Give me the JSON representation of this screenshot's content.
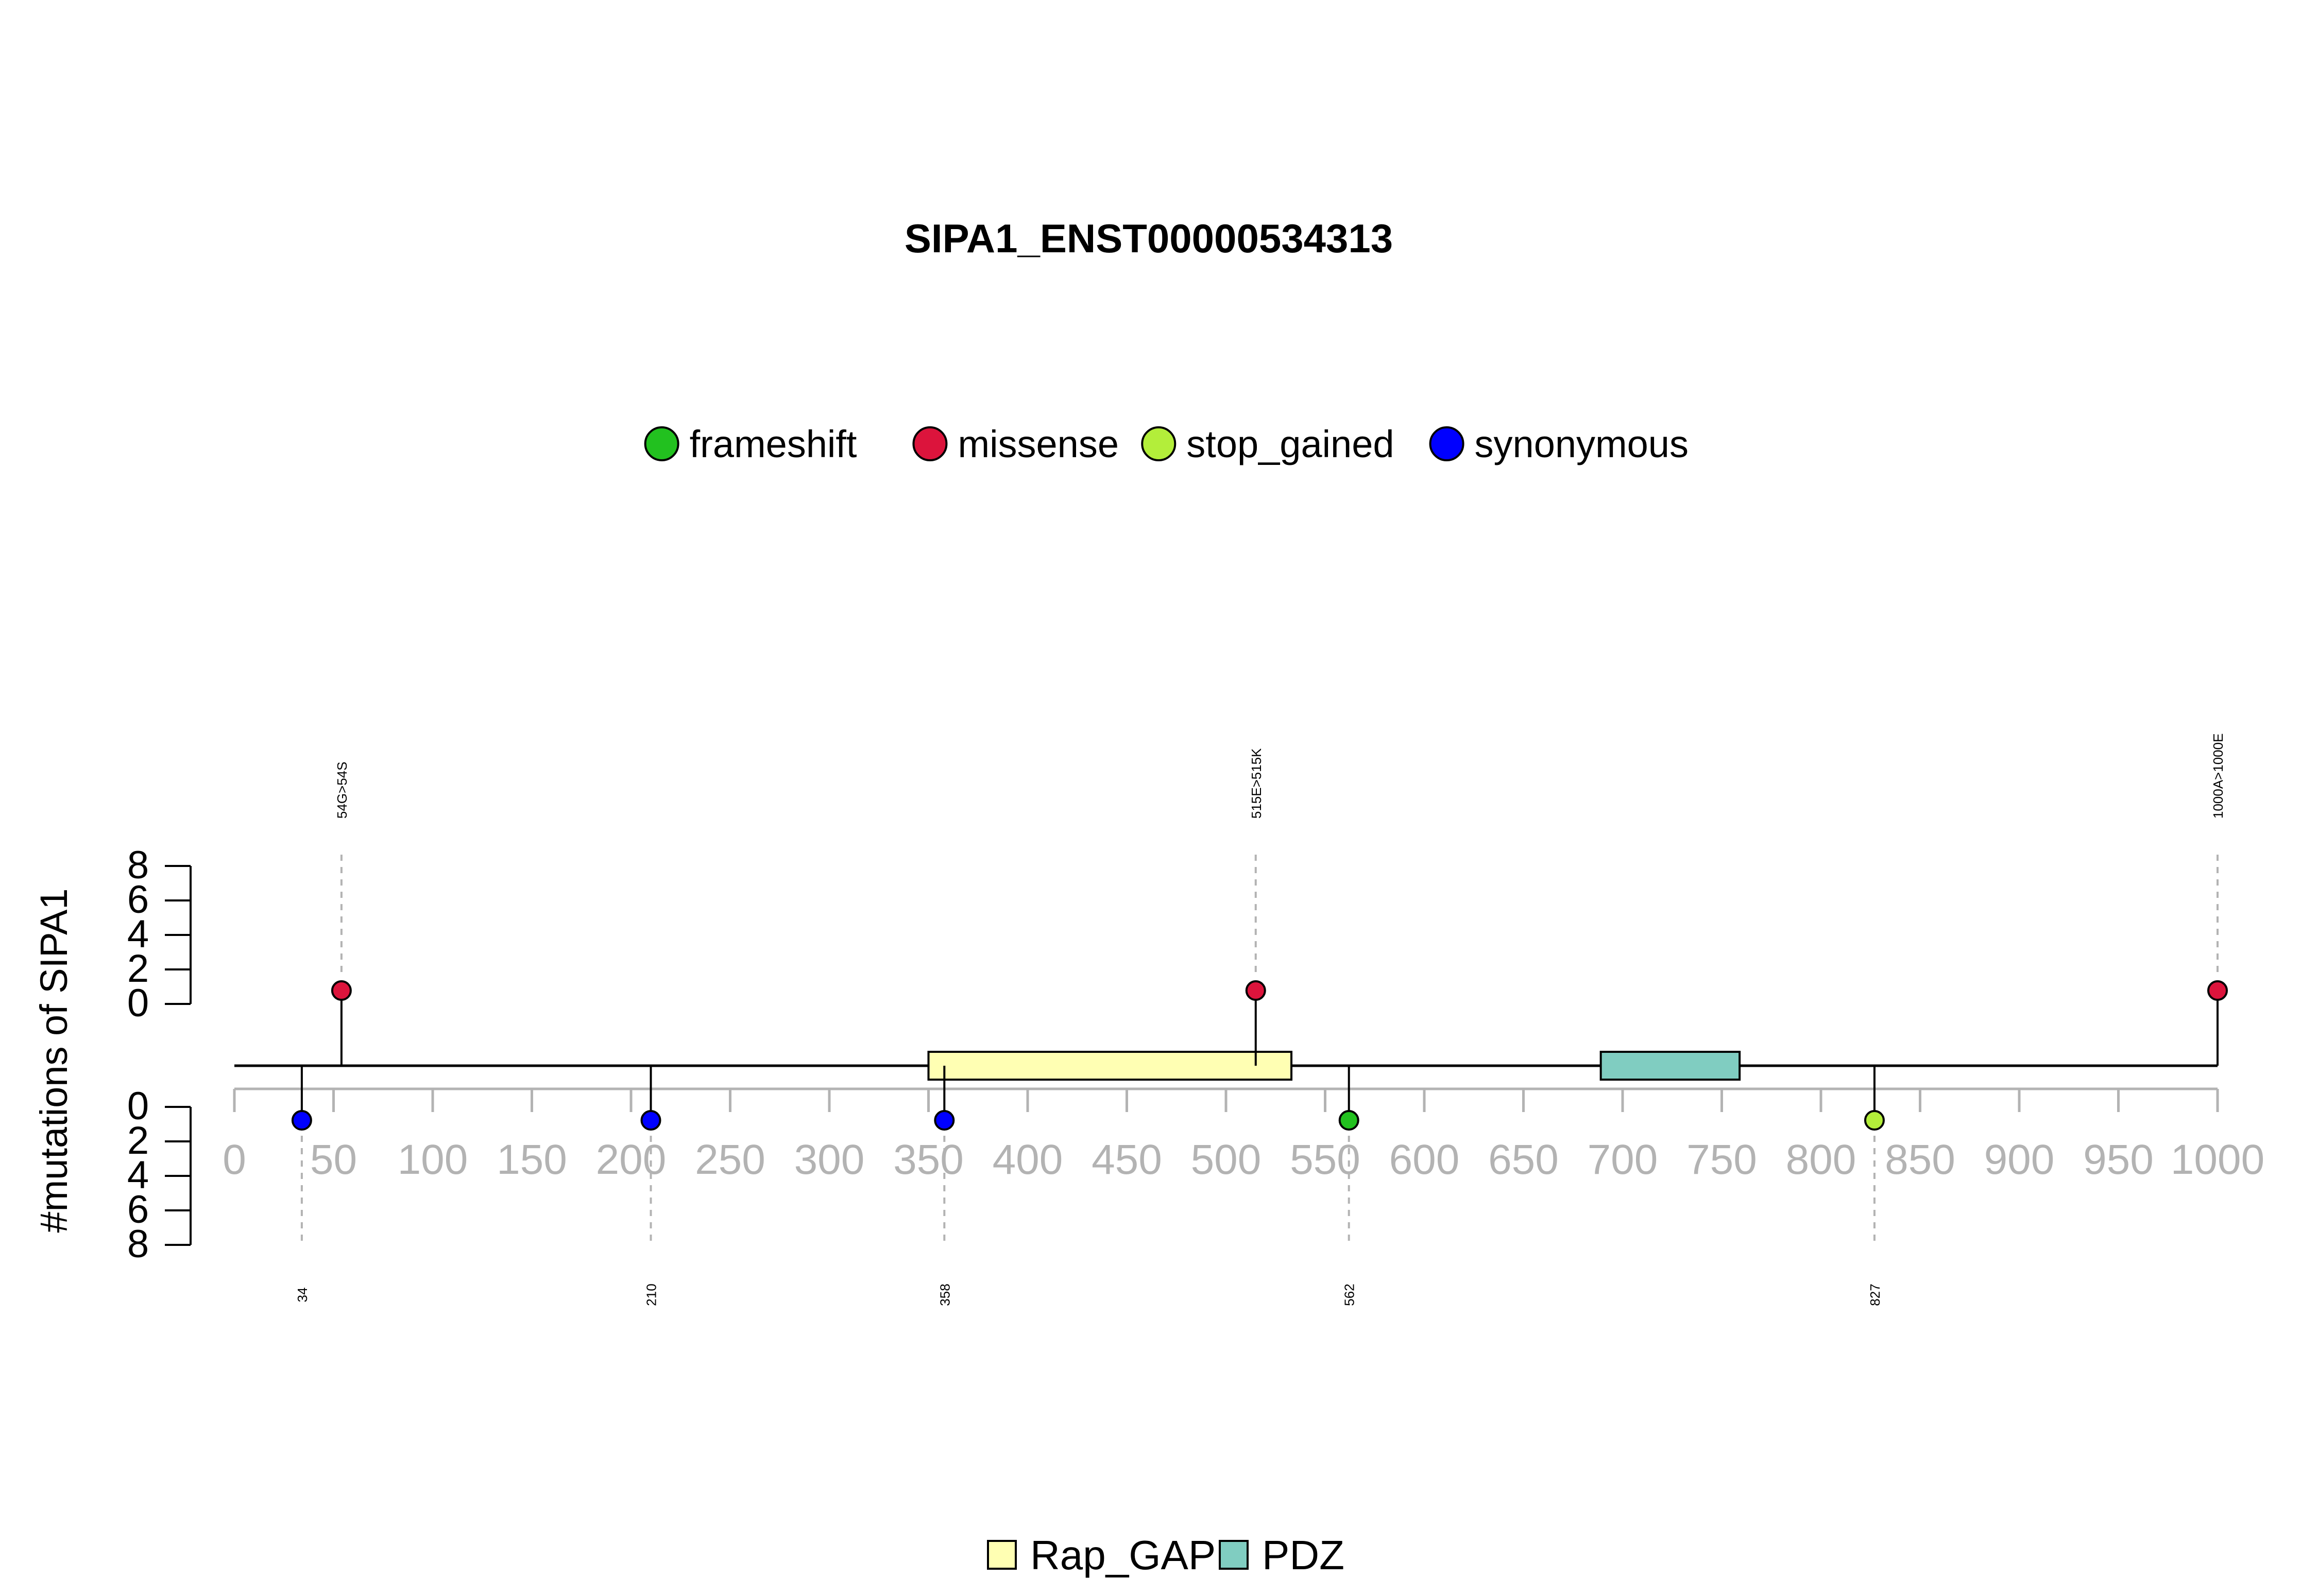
{
  "chart_data": {
    "type": "lollipop",
    "title": "SIPA1_ENST00000534313",
    "ylabel": "#mutations of SIPA1",
    "xlim": [
      0,
      1000
    ],
    "x_ticks": [
      0,
      50,
      100,
      150,
      200,
      250,
      300,
      350,
      400,
      450,
      500,
      550,
      600,
      650,
      700,
      750,
      800,
      850,
      900,
      950,
      1000
    ],
    "y_ticks": [
      0,
      2,
      4,
      6,
      8
    ],
    "legend_types": [
      {
        "name": "frameshift",
        "color": "#22c11f"
      },
      {
        "name": "missense",
        "color": "#dc143c"
      },
      {
        "name": "stop_gained",
        "color": "#b3ee3a"
      },
      {
        "name": "synonymous",
        "color": "#0000ff"
      }
    ],
    "domains": [
      {
        "name": "Rap_GAP",
        "start": 350,
        "end": 533,
        "color": "#ffffb3"
      },
      {
        "name": "PDZ",
        "start": 689,
        "end": 759,
        "color": "#80cdc1"
      }
    ],
    "mutations_top": [
      {
        "position": 54,
        "label": "54G>54S",
        "type": "missense",
        "count": 1
      },
      {
        "position": 515,
        "label": "515E>515K",
        "type": "missense",
        "count": 1
      },
      {
        "position": 1000,
        "label": "1000A>1000E",
        "type": "missense",
        "count": 1
      }
    ],
    "mutations_bottom": [
      {
        "position": 34,
        "label": "34",
        "type": "synonymous",
        "count": 1
      },
      {
        "position": 210,
        "label": "210",
        "type": "synonymous",
        "count": 1
      },
      {
        "position": 358,
        "label": "358",
        "type": "synonymous",
        "count": 1
      },
      {
        "position": 562,
        "label": "562",
        "type": "frameshift",
        "count": 1
      },
      {
        "position": 827,
        "label": "827",
        "type": "stop_gained",
        "count": 1
      }
    ]
  }
}
